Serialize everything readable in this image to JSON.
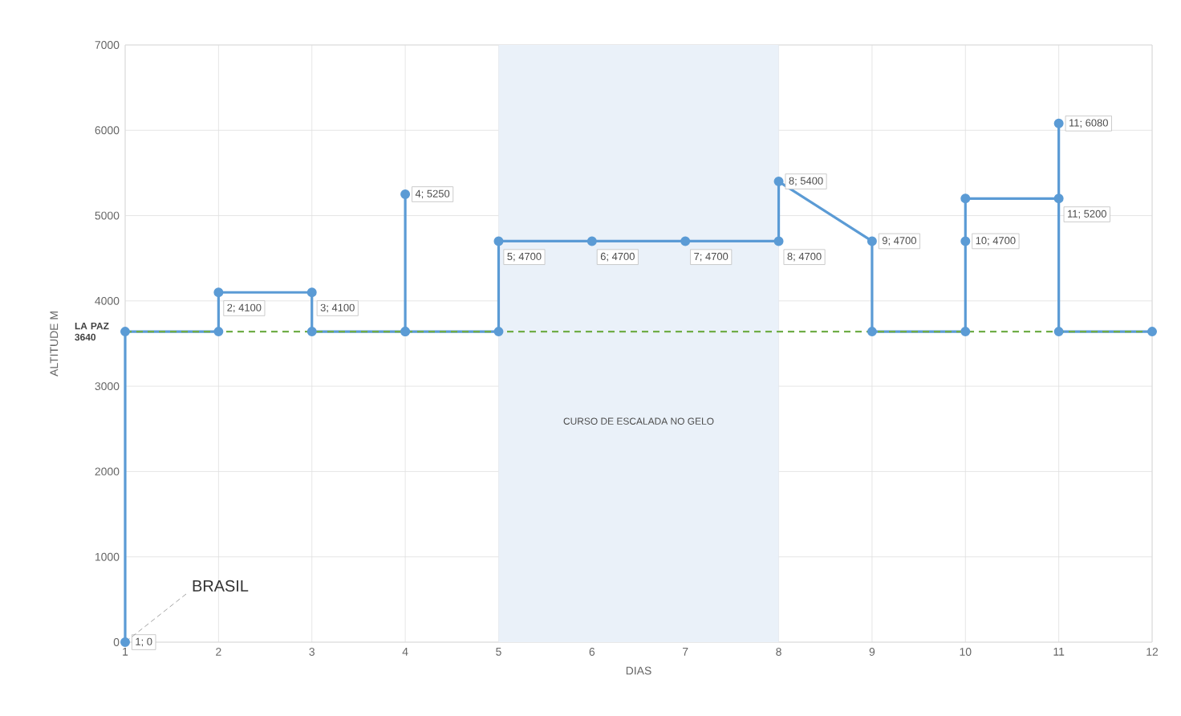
{
  "chart_data": {
    "type": "line",
    "xlabel": "DIAS",
    "ylabel": "ALTITUDE M",
    "xlim": [
      1,
      12
    ],
    "xticks": [
      1,
      2,
      3,
      4,
      5,
      6,
      7,
      8,
      9,
      10,
      11,
      12
    ],
    "ylim": [
      0,
      7000
    ],
    "yticks": [
      0,
      1000,
      2000,
      3000,
      4000,
      5000,
      6000,
      7000
    ],
    "grid": true,
    "marker": "circle",
    "line_style": "solid",
    "series": [
      {
        "color": "#5b9bd5",
        "x": [
          1,
          1,
          2,
          2,
          3,
          3,
          4,
          4,
          4,
          5,
          5,
          6,
          7,
          8,
          8,
          9,
          9,
          10,
          10,
          11,
          11,
          11,
          12
        ],
        "values": [
          0,
          3640,
          3640,
          4100,
          4100,
          3640,
          3640,
          5250,
          3640,
          3640,
          4700,
          4700,
          4700,
          4700,
          5400,
          4700,
          3640,
          3640,
          5200,
          5200,
          6080,
          3640,
          3640
        ],
        "value_labels": [
          "1; 0",
          null,
          null,
          "2; 4100",
          "3; 4100",
          null,
          null,
          "4; 5250",
          null,
          null,
          "5; 4700",
          "6; 4700",
          "7; 4700",
          "8; 4700",
          "8; 5400",
          "9; 4700",
          null,
          null,
          null,
          "11; 5200",
          "11; 6080",
          null,
          null
        ]
      },
      {
        "type": "scatter",
        "color": "#5b9bd5",
        "x": [
          10
        ],
        "values": [
          4700
        ],
        "value_labels": [
          "10; 4700"
        ]
      }
    ],
    "ref_lines": [
      {
        "axis": "y",
        "value": 3640,
        "label": "LA PAZ 3640",
        "color": "#70ad47",
        "line_style": "dashed"
      }
    ],
    "bands": [
      {
        "axis": "x",
        "from": 5,
        "to": 8,
        "label": "CURSO DE ESCALADA NO GELO",
        "color": "#eaf1f9"
      }
    ],
    "annotations": [
      {
        "text": "BRASIL",
        "x": 1,
        "y": 0
      }
    ]
  }
}
